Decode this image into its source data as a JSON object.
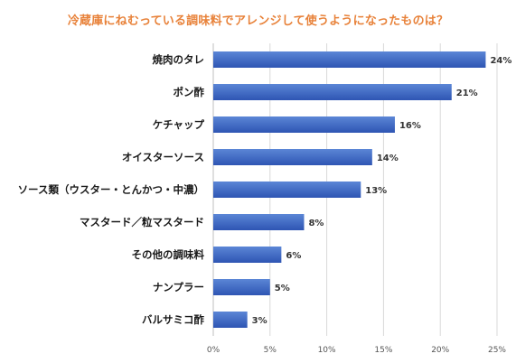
{
  "chart_data": {
    "type": "bar",
    "orientation": "horizontal",
    "title": "冷蔵庫にねむっている調味料でアレンジして使うようになったものは？",
    "categories": [
      "焼肉のタレ",
      "ポン酢",
      "ケチャップ",
      "オイスターソース",
      "ソース類（ウスター・とんかつ・中濃）",
      "マスタード／粒マスタード",
      "その他の調味料",
      "ナンプラー",
      "バルサミコ酢"
    ],
    "values": [
      24,
      21,
      16,
      14,
      13,
      8,
      6,
      5,
      3
    ],
    "value_labels": [
      "24%",
      "21%",
      "16%",
      "14%",
      "13%",
      "8%",
      "6%",
      "5%",
      "3%"
    ],
    "xlim": [
      0,
      25
    ],
    "xticks": [
      0,
      5,
      10,
      15,
      20,
      25
    ],
    "xtick_labels": [
      "0%",
      "5%",
      "10%",
      "15%",
      "20%",
      "25%"
    ],
    "grid": true,
    "colors": {
      "bar_top": "#5b86d6",
      "bar_bottom": "#2e55b3",
      "title": "#e8823a"
    }
  }
}
